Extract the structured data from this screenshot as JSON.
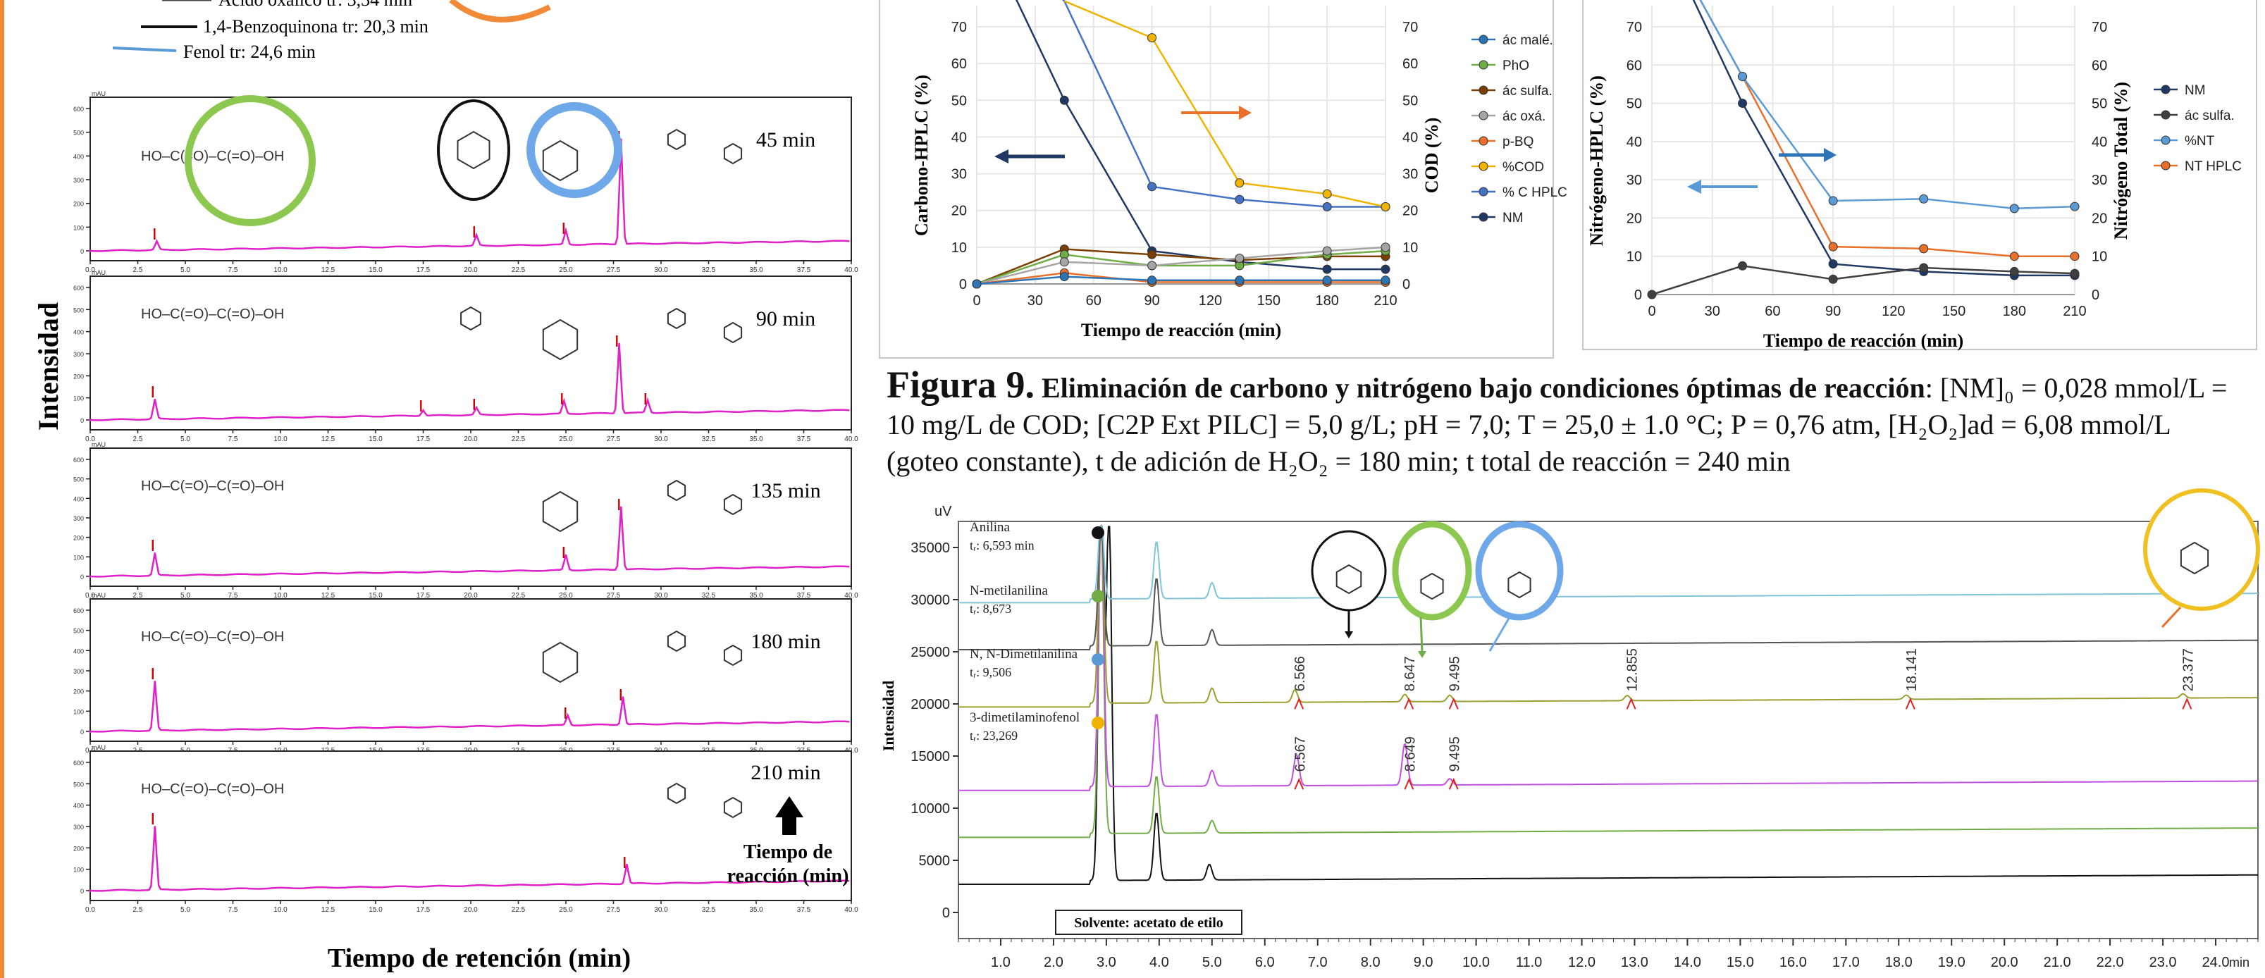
{
  "left_panel": {
    "y_title": "Intensidad",
    "x_title": "Tiempo de retención (min)",
    "arrow_label": "Tiempo de reacción (min)",
    "top_legend": [
      {
        "label": "Ácido oxálico  tr: 3,34 min",
        "color": "#444444"
      },
      {
        "label": "1,4-Benzoquinona tr: 20,3 min",
        "color": "#111111"
      },
      {
        "label": "Fenol  tr: 24,6 min",
        "color": "#5b9bd5"
      }
    ],
    "x_ticks": [
      "0.0",
      "2.5",
      "5.0",
      "7.5",
      "10.0",
      "12.5",
      "15.0",
      "17.5",
      "20.0",
      "22.5",
      "25.0",
      "27.5",
      "30.0",
      "32.5",
      "35.0",
      "37.5",
      "40.0"
    ],
    "y_ticks": [
      "0",
      "100",
      "200",
      "300",
      "400",
      "500",
      "600"
    ],
    "unit": "mAU",
    "panels": [
      {
        "time": "45 min"
      },
      {
        "time": "90 min"
      },
      {
        "time": "135 min"
      },
      {
        "time": "180 min"
      },
      {
        "time": "210 min"
      }
    ]
  },
  "chart_carbon": {
    "xlabel": "Tiempo de reacción (min)",
    "ylabel_left": "Carbono-HPLC (%)",
    "ylabel_right": "COD (%)",
    "x_ticks": [
      "0",
      "30",
      "60",
      "90",
      "120",
      "150",
      "180",
      "210"
    ],
    "y_ticks": [
      "0",
      "10",
      "20",
      "30",
      "40",
      "50",
      "60",
      "70"
    ],
    "legend": [
      "ác malé.",
      "PhO",
      "ác sulfa.",
      "ác oxá.",
      "p-BQ",
      "%COD",
      "% C HPLC",
      "NM"
    ]
  },
  "chart_nitrogen": {
    "xlabel": "Tiempo de reacción (min)",
    "ylabel_left": "Nitrógeno-HPLC (%)",
    "ylabel_right": "Nitrógeno Total (%)",
    "x_ticks": [
      "0",
      "30",
      "60",
      "90",
      "120",
      "150",
      "180",
      "210"
    ],
    "y_ticks": [
      "0",
      "10",
      "20",
      "30",
      "40",
      "50",
      "60",
      "70"
    ],
    "legend": [
      "NM",
      "ác sulfa.",
      "%NT",
      "NT HPLC"
    ]
  },
  "caption": {
    "label": "Figura 9.",
    "title": "Eliminación de carbono y nitrógeno bajo condiciones óptimas de reacción",
    "conditions": ": [NM]₀ = 0,028 mmol/L = 10 mg/L de COD; [C2P Ext PILC] = 5,0 g/L; pH = 7,0; T = 25,0 ± 1.0 °C; P = 0,76 atm, [H₂O₂]ad = 6,08 mmol/L (goteo constante), t de adición de H₂O₂ = 180  min; t total de reacción = 240 min"
  },
  "chart_bottom": {
    "ylabel": "Intensidad",
    "unit": "uV",
    "y_ticks": [
      "0",
      "5000",
      "10000",
      "15000",
      "20000",
      "25000",
      "30000",
      "35000"
    ],
    "x_ticks": [
      "1.0",
      "2.0",
      "3.0",
      "4.0",
      "5.0",
      "6.0",
      "7.0",
      "8.0",
      "9.0",
      "10.0",
      "11.0",
      "12.0",
      "13.0",
      "14.0",
      "15.0",
      "16.0",
      "17.0",
      "18.0",
      "19.0",
      "20.0",
      "21.0",
      "22.0",
      "23.0",
      "24.0"
    ],
    "x_unit": "min",
    "solvent_label": "Solvente: acetato de etilo",
    "legend": [
      {
        "name": "Anilina",
        "tr": "tᵣ: 6,593 min",
        "color": "#111111"
      },
      {
        "name": "N-metilanilina",
        "tr": "tᵣ: 8,673",
        "color": "#70ad47"
      },
      {
        "name": "N, N-Dimetilanilina",
        "tr": "tᵣ: 9,506",
        "color": "#5b9bd5"
      },
      {
        "name": "3-dimetilaminofenol",
        "tr": "tᵣ: 23,269",
        "color": "#f0b400"
      }
    ],
    "peak_labels_top": [
      "6.566",
      "8.647",
      "9.495",
      "12.855",
      "18.141",
      "23.377"
    ],
    "peak_labels_mid": [
      "6.567",
      "8.649",
      "9.495"
    ]
  }
}
